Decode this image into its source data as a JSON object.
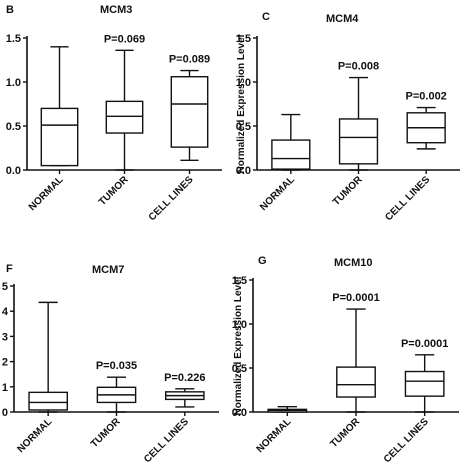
{
  "chart_data": [
    {
      "type": "boxplot",
      "panel_letter": "B",
      "title": "MCM3",
      "ylabel": "",
      "ylim": [
        0,
        1.5
      ],
      "yticks": [
        "0.0",
        "0.5",
        "1.0",
        "1.5"
      ],
      "categories": [
        "NORMAL",
        "TUMOR",
        "CELL LINES"
      ],
      "boxes": [
        {
          "min": 0.05,
          "q1": 0.05,
          "median": 0.51,
          "q3": 0.7,
          "max": 1.4
        },
        {
          "min": 0.0,
          "q1": 0.42,
          "median": 0.61,
          "q3": 0.78,
          "max": 1.36
        },
        {
          "min": 0.11,
          "q1": 0.26,
          "median": 0.75,
          "q3": 1.06,
          "max": 1.13
        }
      ],
      "annotations": [
        "",
        "P=0.069",
        "P=0.089"
      ]
    },
    {
      "type": "boxplot",
      "panel_letter": "C",
      "title": "MCM4",
      "ylabel": "Normalized Expression Level",
      "ylim": [
        0,
        1.5
      ],
      "yticks": [
        "0.0",
        "0.5",
        "1.0",
        "1.5"
      ],
      "categories": [
        "NORMAL",
        "TUMOR",
        "CELL LINES"
      ],
      "boxes": [
        {
          "min": 0.0,
          "q1": 0.01,
          "median": 0.13,
          "q3": 0.34,
          "max": 0.63
        },
        {
          "min": 0.0,
          "q1": 0.07,
          "median": 0.37,
          "q3": 0.58,
          "max": 1.05
        },
        {
          "min": 0.24,
          "q1": 0.31,
          "median": 0.48,
          "q3": 0.65,
          "max": 0.71
        }
      ],
      "annotations": [
        "",
        "P=0.008",
        "P=0.002"
      ]
    },
    {
      "type": "boxplot",
      "panel_letter": "F",
      "title": "MCM7",
      "ylabel": "",
      "ylim": [
        0,
        5
      ],
      "yticks": [
        "0",
        "1",
        "2",
        "3",
        "4",
        "5"
      ],
      "categories": [
        "NORMAL",
        "TUMOR",
        "CELL LINES"
      ],
      "boxes": [
        {
          "min": 0.0,
          "q1": 0.08,
          "median": 0.38,
          "q3": 0.78,
          "max": 4.35
        },
        {
          "min": 0.0,
          "q1": 0.38,
          "median": 0.68,
          "q3": 0.98,
          "max": 1.38
        },
        {
          "min": 0.2,
          "q1": 0.5,
          "median": 0.65,
          "q3": 0.8,
          "max": 0.92
        }
      ],
      "annotations": [
        "",
        "P=0.035",
        "P=0.226"
      ]
    },
    {
      "type": "boxplot",
      "panel_letter": "G",
      "title": "MCM10",
      "ylabel": "Normalized Expression Level",
      "ylim": [
        0,
        1.5
      ],
      "yticks": [
        "0.0",
        "0.5",
        "1.0",
        "1.5"
      ],
      "categories": [
        "NORMAL",
        "TUMOR",
        "CELL LINES"
      ],
      "boxes": [
        {
          "min": 0.0,
          "q1": 0.0,
          "median": 0.02,
          "q3": 0.03,
          "max": 0.06
        },
        {
          "min": 0.0,
          "q1": 0.17,
          "median": 0.31,
          "q3": 0.51,
          "max": 1.17
        },
        {
          "min": 0.0,
          "q1": 0.18,
          "median": 0.35,
          "q3": 0.46,
          "max": 0.65
        }
      ],
      "annotations": [
        "",
        "P=0.0001",
        "P=0.0001"
      ]
    }
  ]
}
